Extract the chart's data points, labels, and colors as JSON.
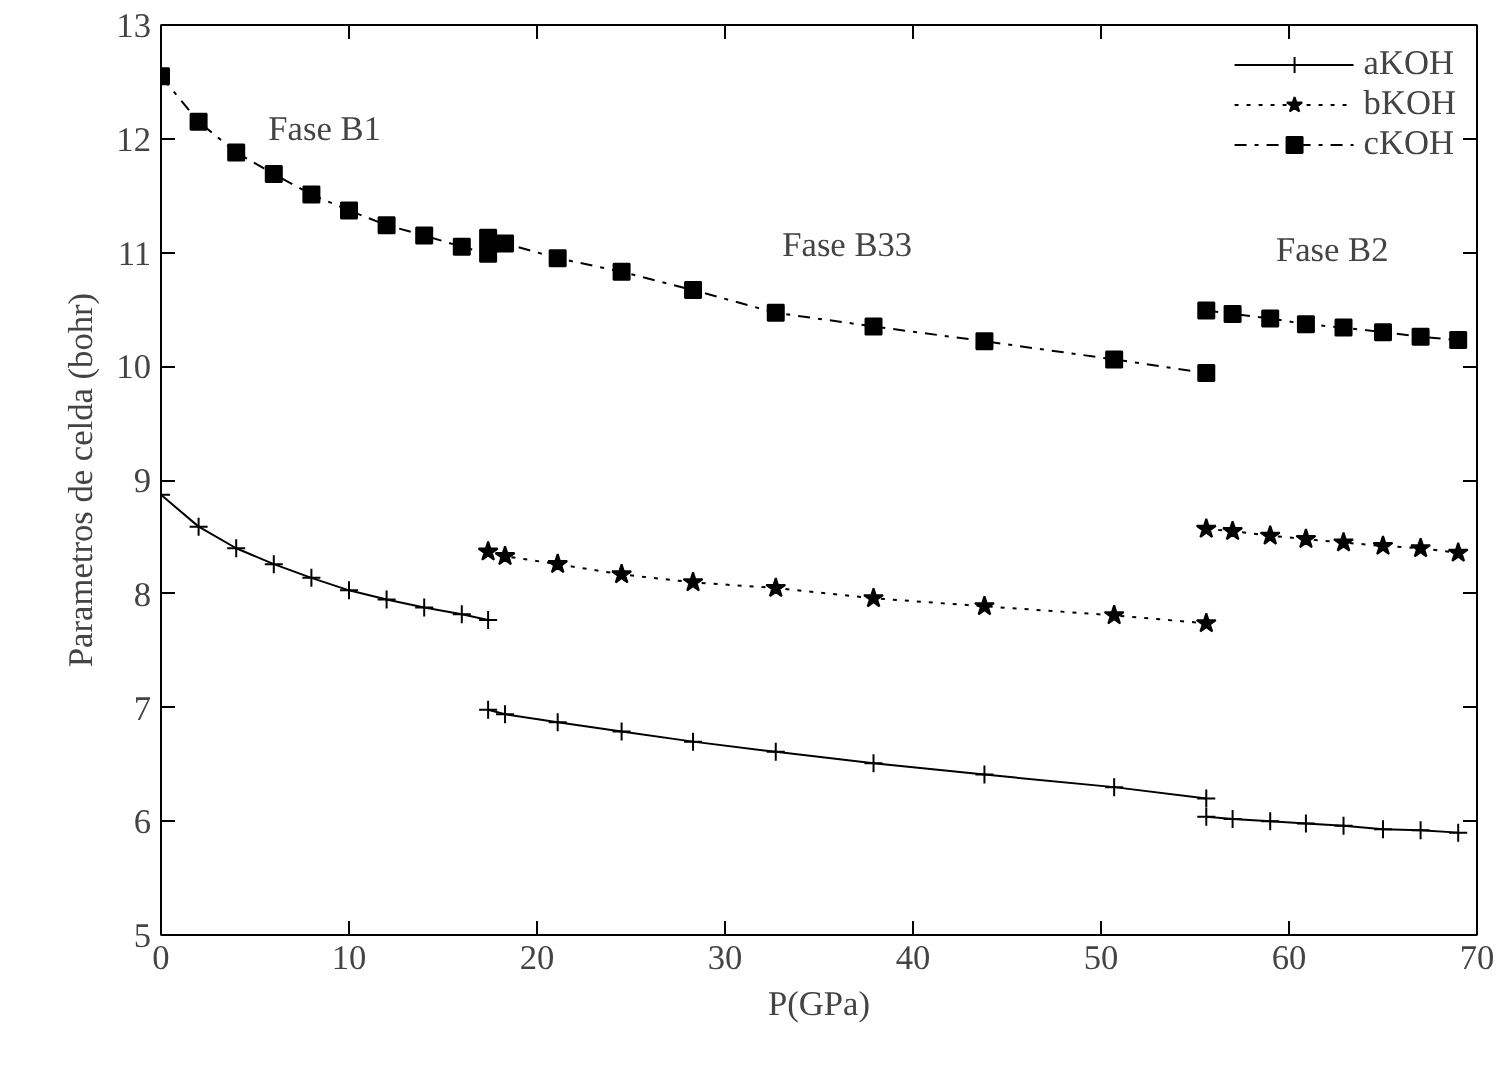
{
  "chart_data": {
    "type": "line",
    "xlabel": "P(GPa)",
    "ylabel": "Parametros de celda (bohr)",
    "xlim": [
      0,
      70
    ],
    "ylim": [
      5,
      13
    ],
    "xticks": [
      0,
      10,
      20,
      30,
      40,
      50,
      60,
      70
    ],
    "yticks": [
      5,
      6,
      7,
      8,
      9,
      10,
      11,
      12,
      13
    ],
    "legend": "top right",
    "grid": false,
    "series": [
      {
        "name": "aKOH",
        "color": "#000000",
        "marker": "cross",
        "line_style": "solid",
        "x": [
          0,
          2,
          4,
          6,
          8,
          10,
          12,
          14,
          16,
          17.4,
          null,
          17.4,
          18.3,
          21.1,
          24.5,
          28.3,
          32.7,
          37.9,
          43.8,
          50.7,
          55.6,
          null,
          55.6,
          57.0,
          59.0,
          60.9,
          62.9,
          65.0,
          67.0,
          69.0
        ],
        "values": [
          8.87,
          8.59,
          8.4,
          8.26,
          8.14,
          8.03,
          7.95,
          7.88,
          7.82,
          7.77,
          null,
          6.98,
          6.94,
          6.87,
          6.79,
          6.7,
          6.61,
          6.51,
          6.41,
          6.3,
          6.2,
          null,
          6.04,
          6.02,
          6.0,
          5.98,
          5.96,
          5.93,
          5.92,
          5.9
        ]
      },
      {
        "name": "bKOH",
        "color": "#000000",
        "marker": "star",
        "line_style": "dotted",
        "x": [
          17.4,
          18.3,
          21.1,
          24.5,
          28.3,
          32.7,
          37.9,
          43.8,
          50.7,
          55.6,
          null,
          55.6,
          57.0,
          59.0,
          60.9,
          62.9,
          65.0,
          67.0,
          69.0
        ],
        "values": [
          8.37,
          8.33,
          8.26,
          8.17,
          8.1,
          8.05,
          7.96,
          7.89,
          7.81,
          7.74,
          null,
          8.57,
          8.55,
          8.51,
          8.48,
          8.45,
          8.42,
          8.4,
          8.36
        ]
      },
      {
        "name": "cKOH",
        "color": "#000000",
        "marker": "square",
        "line_style": "dashed",
        "x": [
          0,
          2,
          4,
          6,
          8,
          10,
          12,
          14,
          16,
          17.4,
          null,
          17.4,
          18.3,
          21.1,
          24.5,
          28.3,
          32.7,
          37.9,
          43.8,
          50.7,
          55.6,
          null,
          55.6,
          57.0,
          59.0,
          60.9,
          62.9,
          65.0,
          67.0,
          69.0
        ],
        "values": [
          12.55,
          12.15,
          11.88,
          11.69,
          11.51,
          11.37,
          11.24,
          11.15,
          11.05,
          10.99,
          null,
          11.13,
          11.08,
          10.95,
          10.83,
          10.67,
          10.47,
          10.35,
          10.22,
          10.06,
          9.94,
          null,
          10.49,
          10.46,
          10.42,
          10.37,
          10.34,
          10.3,
          10.26,
          10.23
        ]
      }
    ],
    "annotations": [
      "Fase B1",
      "Fase B33",
      "Fase B2"
    ]
  }
}
